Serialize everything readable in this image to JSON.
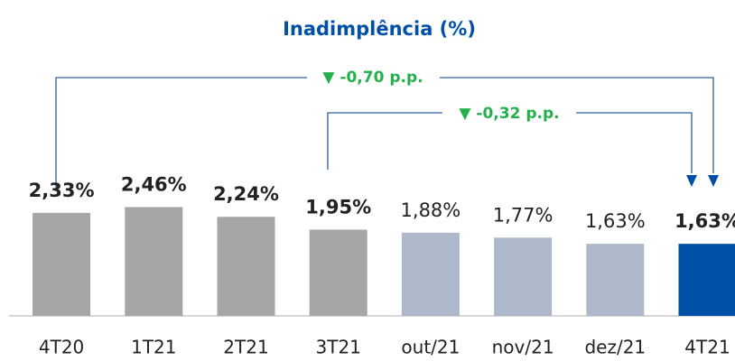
{
  "chart_data": {
    "type": "bar",
    "title": "Inadimplência (%)",
    "categories": [
      "4T20",
      "1T21",
      "2T21",
      "3T21",
      "out/21",
      "nov/21",
      "dez/21",
      "4T21"
    ],
    "values": [
      2.33,
      2.46,
      2.24,
      1.95,
      1.88,
      1.77,
      1.63,
      1.63
    ],
    "value_labels": [
      "2,33%",
      "2,46%",
      "2,24%",
      "1,95%",
      "1,88%",
      "1,77%",
      "1,63%",
      "1,63%"
    ],
    "value_label_bold": [
      true,
      true,
      true,
      true,
      false,
      false,
      false,
      true
    ],
    "colors": [
      "#a6a6a6",
      "#a6a6a6",
      "#a6a6a6",
      "#a6a6a6",
      "#adb9ca",
      "#adb9ca",
      "#adb9ca",
      "#0050a8"
    ],
    "annotations": [
      {
        "text": "▼ -0,70 p.p."
      },
      {
        "text": "▼ -0,32 p.p."
      }
    ]
  }
}
